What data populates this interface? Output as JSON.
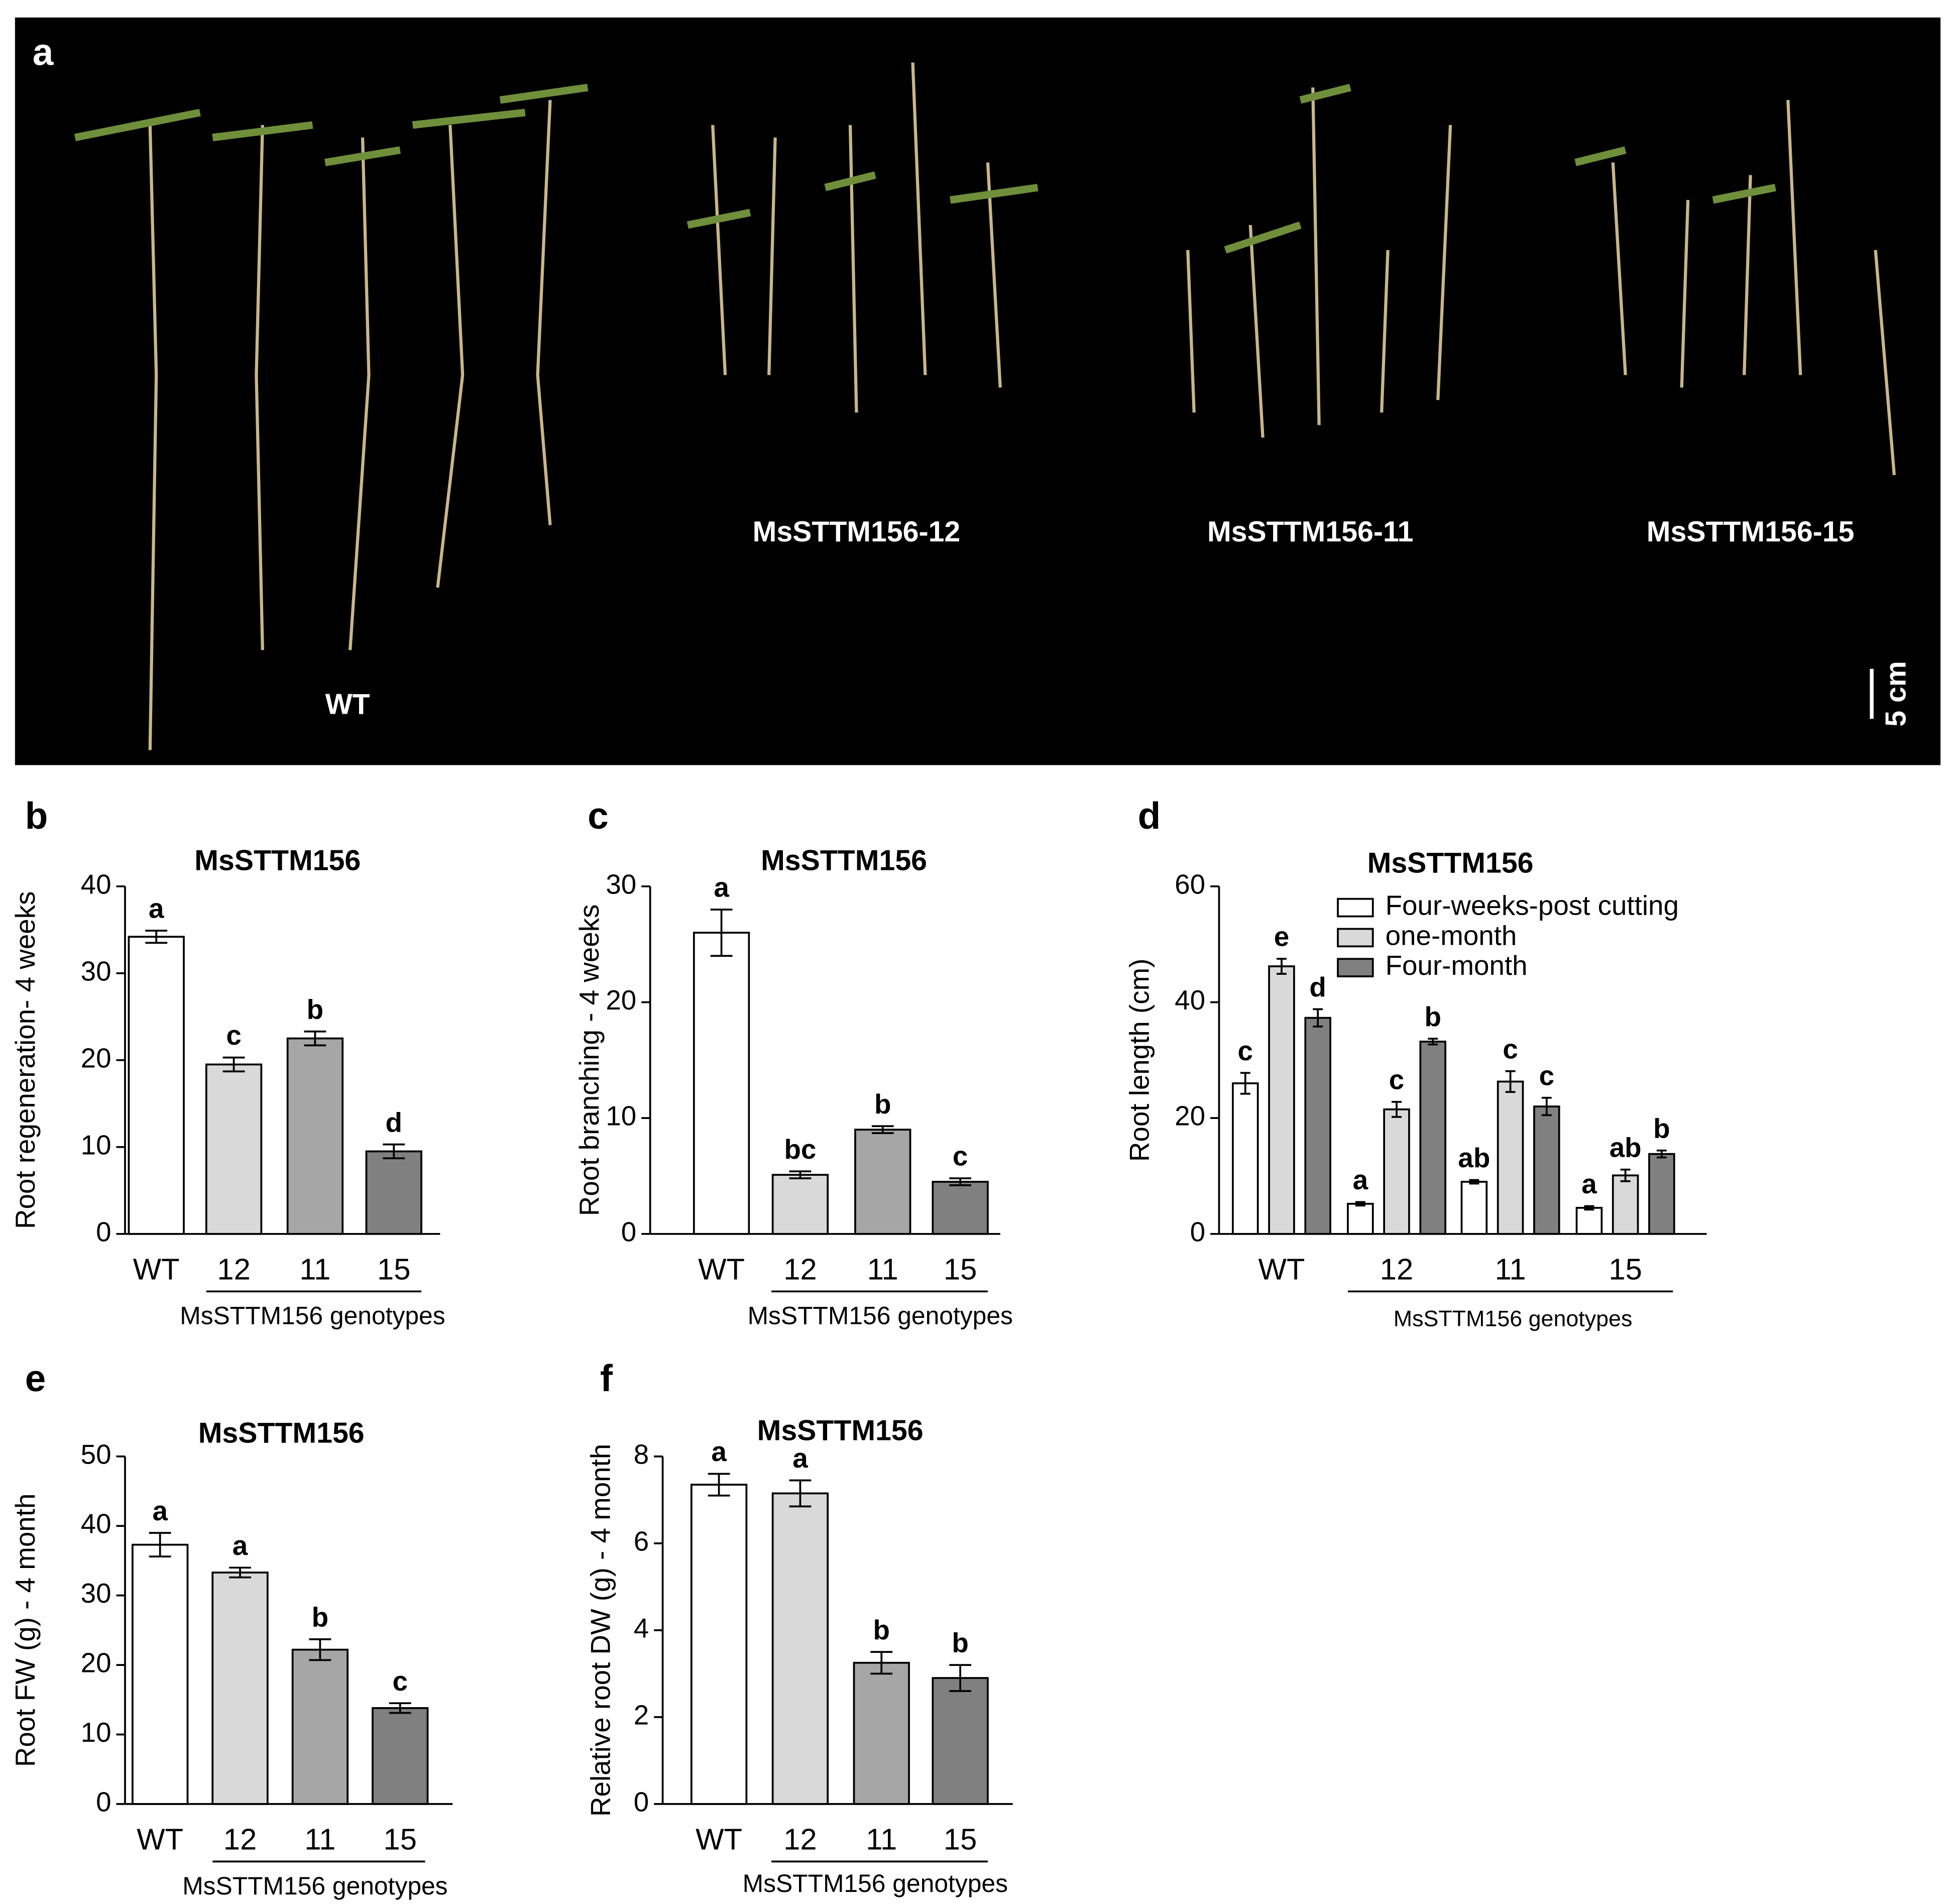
{
  "photo": {
    "panel": "a",
    "labels": [
      "WT",
      "MsSTTM156-12",
      "MsSTTM156-11",
      "MsSTTM156-15"
    ],
    "scale_bar": "5 cm"
  },
  "chart_data": [
    {
      "type": "bar",
      "panel": "b",
      "title": "MsSTTM156",
      "y_label": "Root regeneration- 4 weeks",
      "x_label": "MsSTTM156 genotypes",
      "categories": [
        "WT",
        "12",
        "11",
        "15"
      ],
      "values": [
        34.2,
        19.5,
        22.5,
        9.5
      ],
      "errors": [
        0.7,
        0.8,
        0.8,
        0.8
      ],
      "letters": [
        "a",
        "c",
        "b",
        "d"
      ],
      "colors": [
        "#ffffff",
        "#d9d9d9",
        "#a6a6a6",
        "#808080"
      ],
      "ylim": [
        0,
        40
      ],
      "yticks": [
        0,
        10,
        20,
        30,
        40
      ]
    },
    {
      "type": "bar",
      "panel": "c",
      "title": "MsSTTM156",
      "y_label": "Root branching - 4 weeks",
      "x_label": "MsSTTM156 genotypes",
      "categories": [
        "WT",
        "12",
        "11",
        "15"
      ],
      "values": [
        26,
        5.1,
        9,
        4.5
      ],
      "errors": [
        2,
        0.3,
        0.3,
        0.3
      ],
      "letters": [
        "a",
        "bc",
        "b",
        "c"
      ],
      "colors": [
        "#ffffff",
        "#d9d9d9",
        "#a6a6a6",
        "#808080"
      ],
      "ylim": [
        0,
        30
      ],
      "yticks": [
        0,
        10,
        20,
        30
      ]
    },
    {
      "type": "bar",
      "panel": "d",
      "title": "MsSTTM156",
      "y_label": "Root length (cm)",
      "x_label": "MsSTTM156 genotypes",
      "categories": [
        "WT",
        "12",
        "11",
        "15"
      ],
      "series": [
        {
          "name": "Four-weeks-post cutting",
          "color": "#ffffff",
          "values": [
            26,
            5.2,
            9,
            4.5
          ],
          "errors": [
            1.8,
            0.3,
            0.3,
            0.3
          ],
          "letters": [
            "c",
            "a",
            "ab",
            "a"
          ]
        },
        {
          "name": "one-month",
          "color": "#d9d9d9",
          "values": [
            46.2,
            21.5,
            26.3,
            10.1
          ],
          "errors": [
            1.3,
            1.3,
            1.8,
            1
          ],
          "letters": [
            "e",
            "c",
            "c",
            "ab"
          ]
        },
        {
          "name": "Four-month",
          "color": "#808080",
          "values": [
            37.3,
            33.2,
            22,
            13.8
          ],
          "errors": [
            1.5,
            0.5,
            1.5,
            0.6
          ],
          "letters": [
            "d",
            "b",
            "c",
            "b"
          ]
        }
      ],
      "ylim": [
        0,
        60
      ],
      "yticks": [
        0,
        20,
        40,
        60
      ]
    },
    {
      "type": "bar",
      "panel": "e",
      "title": "MsSTTM156",
      "y_label": "Root FW (g) - 4 month",
      "x_label": "MsSTTM156 genotypes",
      "categories": [
        "WT",
        "12",
        "11",
        "15"
      ],
      "values": [
        37.3,
        33.3,
        22.2,
        13.8
      ],
      "errors": [
        1.7,
        0.7,
        1.5,
        0.7
      ],
      "letters": [
        "a",
        "a",
        "b",
        "c"
      ],
      "colors": [
        "#ffffff",
        "#d9d9d9",
        "#a6a6a6",
        "#808080"
      ],
      "ylim": [
        0,
        50
      ],
      "yticks": [
        0,
        10,
        20,
        30,
        40,
        50
      ]
    },
    {
      "type": "bar",
      "panel": "f",
      "title": "MsSTTM156",
      "y_label": "Relative root DW (g) - 4 month",
      "x_label": "MsSTTM156 genotypes",
      "categories": [
        "WT",
        "12",
        "11",
        "15"
      ],
      "values": [
        7.35,
        7.15,
        3.25,
        2.9
      ],
      "errors": [
        0.25,
        0.3,
        0.25,
        0.3
      ],
      "letters": [
        "a",
        "a",
        "b",
        "b"
      ],
      "colors": [
        "#ffffff",
        "#d9d9d9",
        "#a6a6a6",
        "#808080"
      ],
      "ylim": [
        0,
        8
      ],
      "yticks": [
        0,
        2,
        4,
        6,
        8
      ]
    }
  ]
}
